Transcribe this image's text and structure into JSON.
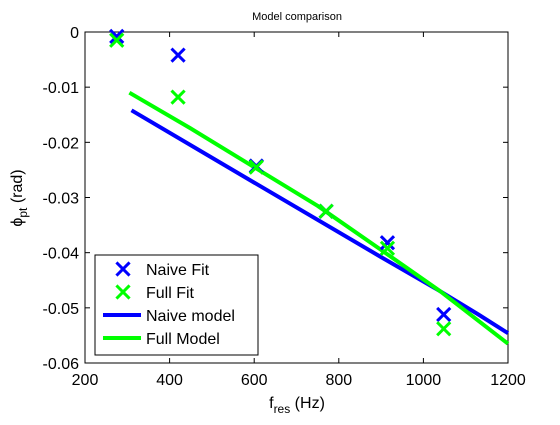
{
  "chart_data": {
    "type": "line",
    "title": "Model comparison",
    "xlabel": {
      "main": "f",
      "sub": "res",
      "unit": " (Hz)"
    },
    "ylabel": {
      "main": "ϕ",
      "sub": "pt",
      "unit": " (rad)"
    },
    "xlim": [
      200,
      1200
    ],
    "ylim": [
      -0.06,
      0
    ],
    "xticks": [
      200,
      400,
      600,
      800,
      1000,
      1200
    ],
    "yticks": [
      0,
      -0.01,
      -0.02,
      -0.03,
      -0.04,
      -0.05,
      -0.06
    ],
    "xtick_labels": [
      "200",
      "400",
      "600",
      "800",
      "1000",
      "1200"
    ],
    "ytick_labels": [
      "0",
      "-0.01",
      "-0.02",
      "-0.03",
      "-0.04",
      "-0.05",
      "-0.06"
    ],
    "grid": false,
    "legend_position": "bottom-left",
    "series": [
      {
        "name": "Naive Fit",
        "kind": "scatter",
        "marker": "x",
        "color": "#0000ff",
        "points": [
          [
            275,
            -0.0008
          ],
          [
            420,
            -0.0042
          ],
          [
            605,
            -0.0243
          ],
          [
            770,
            -0.0325
          ],
          [
            915,
            -0.0382
          ],
          [
            1048,
            -0.0512
          ]
        ]
      },
      {
        "name": "Full Fit",
        "kind": "scatter",
        "marker": "x",
        "color": "#00ff00",
        "points": [
          [
            275,
            -0.0015
          ],
          [
            420,
            -0.0118
          ],
          [
            605,
            -0.0245
          ],
          [
            770,
            -0.0325
          ],
          [
            915,
            -0.0392
          ],
          [
            1048,
            -0.0538
          ]
        ]
      },
      {
        "name": "Naive model",
        "kind": "line",
        "color": "#0000ff",
        "points": [
          [
            310,
            -0.0142
          ],
          [
            600,
            -0.0273
          ],
          [
            900,
            -0.0408
          ],
          [
            1040,
            -0.047
          ],
          [
            1130,
            -0.0512
          ],
          [
            1200,
            -0.0546
          ]
        ]
      },
      {
        "name": "Full Model",
        "kind": "line",
        "color": "#00ff00",
        "points": [
          [
            305,
            -0.011
          ],
          [
            450,
            -0.0175
          ],
          [
            600,
            -0.0245
          ],
          [
            750,
            -0.0315
          ],
          [
            900,
            -0.0395
          ],
          [
            1040,
            -0.047
          ],
          [
            1200,
            -0.0565
          ]
        ]
      }
    ]
  }
}
